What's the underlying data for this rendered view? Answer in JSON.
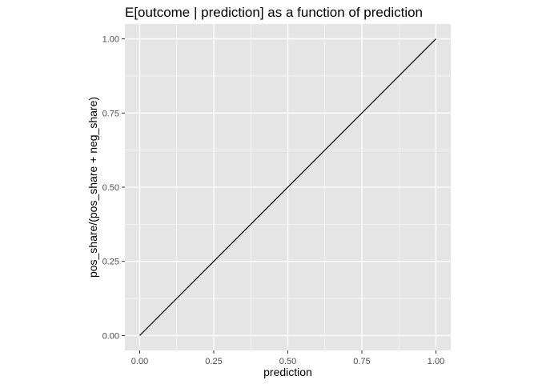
{
  "chart_data": {
    "type": "line",
    "title": "E[outcome | prediction] as a function of prediction",
    "xlabel": "prediction",
    "ylabel": "pos_share/(pos_share + neg_share)",
    "xlim": [
      -0.05,
      1.05
    ],
    "ylim": [
      -0.05,
      1.05
    ],
    "x_ticks": [
      0.0,
      0.25,
      0.5,
      0.75,
      1.0
    ],
    "x_tick_labels": [
      "0.00",
      "0.25",
      "0.50",
      "0.75",
      "1.00"
    ],
    "y_ticks": [
      0.0,
      0.25,
      0.5,
      0.75,
      1.0
    ],
    "y_tick_labels": [
      "0.00",
      "0.25",
      "0.50",
      "0.75",
      "1.00"
    ],
    "grid": true,
    "legend": "none",
    "series": [
      {
        "x": [
          0.0,
          1.0
        ],
        "y": [
          0.0,
          1.0
        ],
        "color": "#000000"
      }
    ],
    "panel_background": "#e5e5e5",
    "grid_color": "#ffffff"
  }
}
